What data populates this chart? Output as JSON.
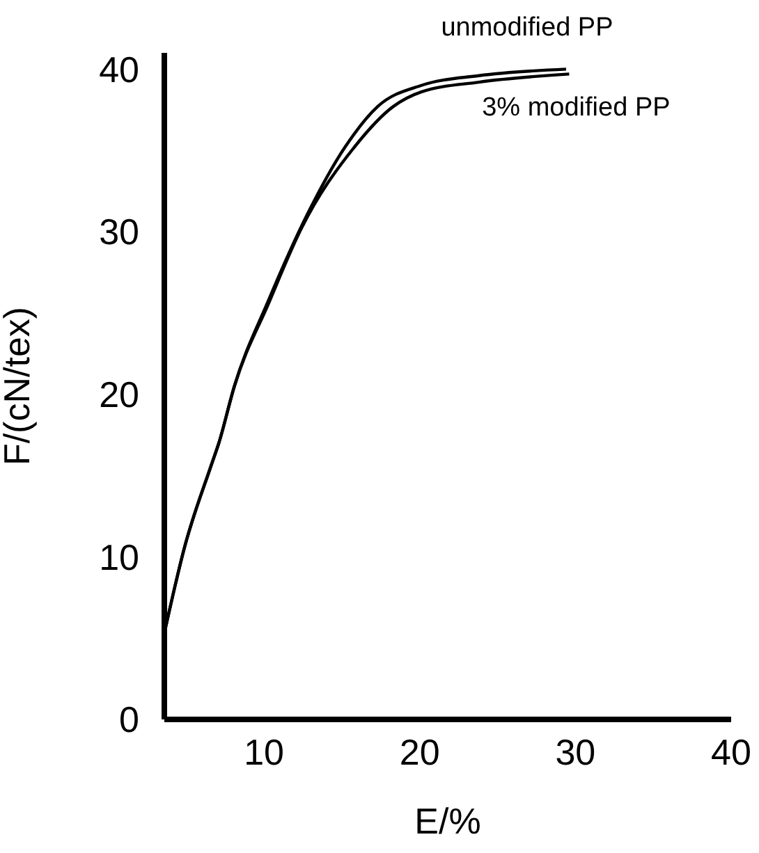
{
  "chart_data": {
    "type": "line",
    "xlabel": "E/%",
    "ylabel": "F/(cN/tex)",
    "xlim": [
      3.6,
      40
    ],
    "xticks": [
      10,
      20,
      30,
      40
    ],
    "ylim": [
      0,
      41
    ],
    "yticks": [
      0,
      10,
      20,
      30,
      40
    ],
    "grid": false,
    "legend": false,
    "marker": "none",
    "line_style": "solid",
    "series": [
      {
        "name": "unmodified PP",
        "color": "#000000",
        "x": [
          3.6,
          4.9,
          6.6,
          7.1,
          8.1,
          10.3,
          12.8,
          15.2,
          17.3,
          20.1,
          23.8,
          29.4
        ],
        "values": [
          5.3,
          10.6,
          15.6,
          17.0,
          20.5,
          25.8,
          31.1,
          35.2,
          37.7,
          39.0,
          39.6,
          40.0
        ]
      },
      {
        "name": "3% modified PP",
        "color": "#000000",
        "x": [
          3.6,
          4.9,
          6.6,
          7.1,
          8.1,
          10.3,
          12.4,
          15.8,
          18.3,
          20.1,
          23.8,
          29.6
        ],
        "values": [
          5.3,
          10.6,
          15.6,
          17.0,
          20.5,
          25.6,
          30.2,
          35.2,
          37.7,
          38.6,
          39.2,
          39.7
        ]
      }
    ]
  }
}
